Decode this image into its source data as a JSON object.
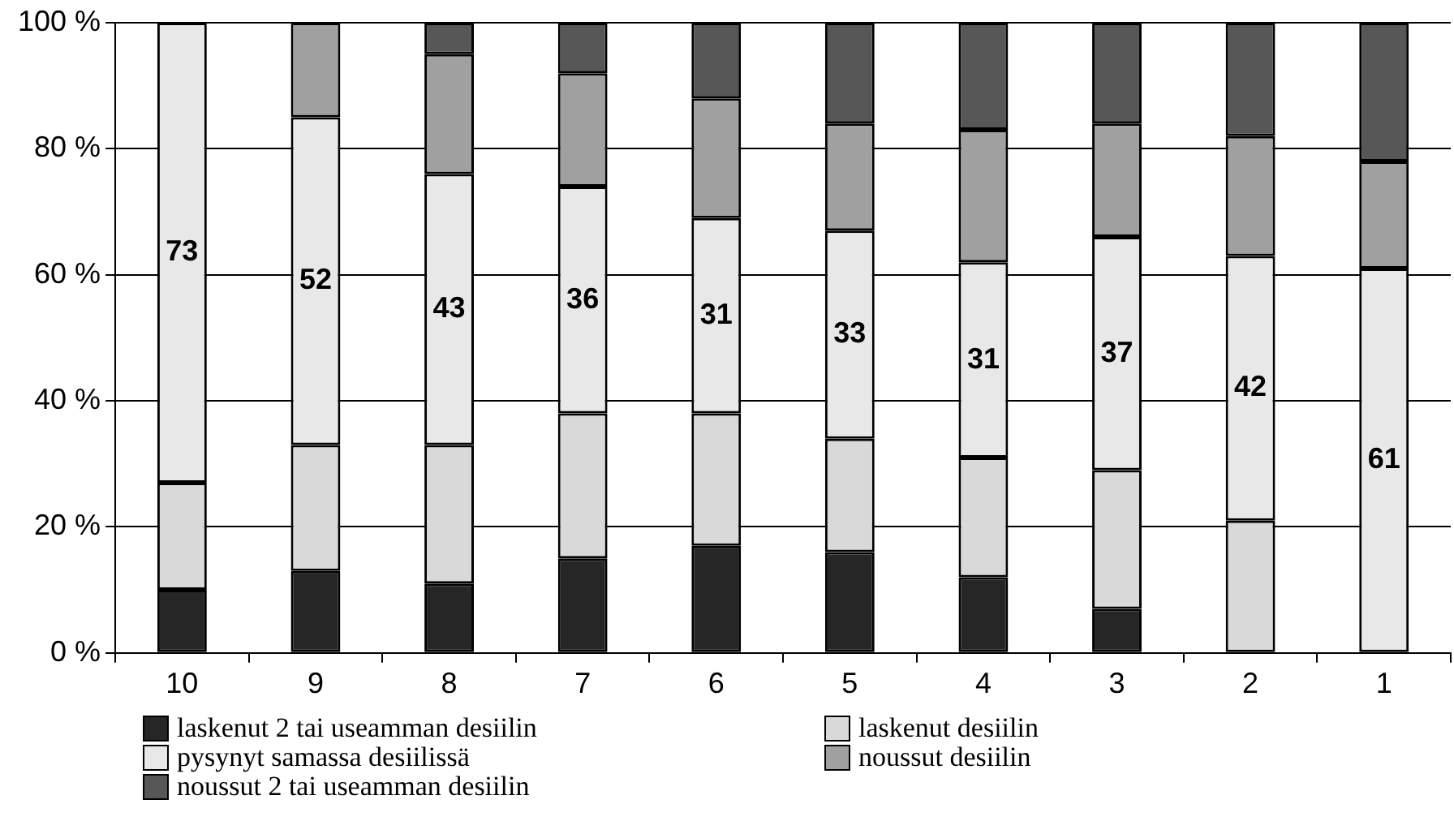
{
  "chart_data": {
    "type": "bar",
    "stacked": true,
    "categories": [
      "10",
      "9",
      "8",
      "7",
      "6",
      "5",
      "4",
      "3",
      "2",
      "1"
    ],
    "series": [
      {
        "name": "laskenut 2 tai useamman desiilin",
        "color": "#262626",
        "values": [
          10,
          13,
          11,
          15,
          17,
          16,
          12,
          7,
          0,
          0
        ]
      },
      {
        "name": "laskenut desiilin",
        "color": "#d9d9d9",
        "values": [
          17,
          20,
          22,
          23,
          21,
          18,
          19,
          22,
          21,
          0
        ]
      },
      {
        "name": "pysynyt samassa desiilissä",
        "color": "#e8e8e8",
        "values": [
          73,
          52,
          43,
          36,
          31,
          33,
          31,
          37,
          42,
          61
        ],
        "value_labels": [
          "73",
          "52",
          "43",
          "36",
          "31",
          "33",
          "31",
          "37",
          "42",
          "61"
        ]
      },
      {
        "name": "noussut desiilin",
        "color": "#a0a0a0",
        "values": [
          0,
          15,
          19,
          18,
          19,
          17,
          21,
          18,
          19,
          17
        ]
      },
      {
        "name": "noussut 2 tai useamman desiilin",
        "color": "#575757",
        "values": [
          0,
          0,
          5,
          8,
          12,
          16,
          17,
          16,
          18,
          22
        ]
      }
    ],
    "ylim": [
      0,
      100
    ],
    "yticks": [
      {
        "value": 0,
        "label": "0 %"
      },
      {
        "value": 20,
        "label": "20 %"
      },
      {
        "value": 40,
        "label": "40 %"
      },
      {
        "value": 60,
        "label": "60 %"
      },
      {
        "value": 80,
        "label": "80 %"
      },
      {
        "value": 100,
        "label": "100 %"
      }
    ],
    "grid": "y",
    "legend": "bottom"
  }
}
